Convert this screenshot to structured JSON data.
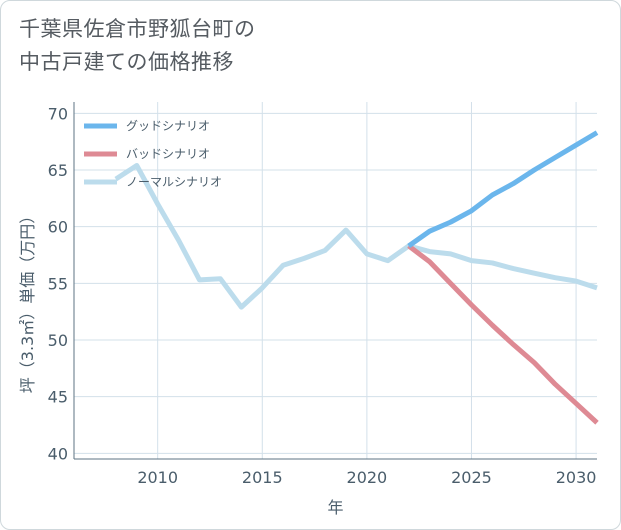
{
  "title": "千葉県佐倉市野狐台町の\n中古戸建ての価格推移",
  "chart_data": {
    "type": "line",
    "xlabel": "年",
    "ylabel": "坪（3.3㎡）単価（万円）",
    "xlim": [
      2006,
      2031
    ],
    "ylim": [
      39.5,
      71
    ],
    "xticks": [
      2010,
      2015,
      2020,
      2025,
      2030
    ],
    "yticks": [
      40,
      45,
      50,
      55,
      60,
      65,
      70
    ],
    "grid": true,
    "legend_position": "top-left",
    "series": [
      {
        "name": "グッドシナリオ",
        "color": "#6bb6ec",
        "x": [
          2022,
          2023,
          2024,
          2025,
          2026,
          2027,
          2028,
          2029,
          2030,
          2031
        ],
        "y": [
          58.3,
          59.6,
          60.4,
          61.4,
          62.8,
          63.8,
          65.0,
          66.1,
          67.2,
          68.3
        ]
      },
      {
        "name": "バッドシナリオ",
        "color": "#de8a94",
        "x": [
          2022,
          2023,
          2024,
          2025,
          2026,
          2027,
          2028,
          2029,
          2030,
          2031
        ],
        "y": [
          58.3,
          56.9,
          55.0,
          53.1,
          51.3,
          49.6,
          48.0,
          46.1,
          44.4,
          42.7
        ]
      },
      {
        "name": "ノーマルシナリオ",
        "color": "#bcdcec",
        "x": [
          2008,
          2009,
          2010,
          2011,
          2012,
          2013,
          2014,
          2015,
          2016,
          2017,
          2018,
          2019,
          2020,
          2021,
          2022,
          2023,
          2024,
          2025,
          2026,
          2027,
          2028,
          2029,
          2030,
          2031
        ],
        "y": [
          64.2,
          65.4,
          62.0,
          58.8,
          55.3,
          55.4,
          52.9,
          54.6,
          56.6,
          57.2,
          57.9,
          59.7,
          57.6,
          57.0,
          58.3,
          57.8,
          57.6,
          57.0,
          56.8,
          56.3,
          55.9,
          55.5,
          55.2,
          54.6
        ]
      }
    ]
  }
}
